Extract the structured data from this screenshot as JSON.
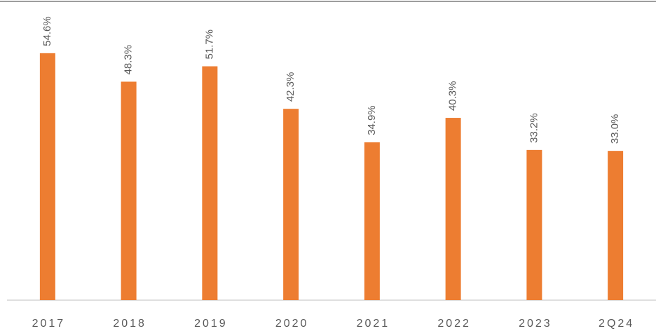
{
  "chart_data": {
    "type": "bar",
    "categories": [
      "2017",
      "2018",
      "2019",
      "2020",
      "2021",
      "2022",
      "2023",
      "2Q24"
    ],
    "values": [
      54.6,
      48.3,
      51.7,
      42.3,
      34.9,
      40.3,
      33.2,
      33.0
    ],
    "value_labels": [
      "54.6%",
      "48.3%",
      "51.7%",
      "42.3%",
      "34.9%",
      "40.3%",
      "33.2%",
      "33.0%"
    ],
    "color": "#ed7d31"
  }
}
